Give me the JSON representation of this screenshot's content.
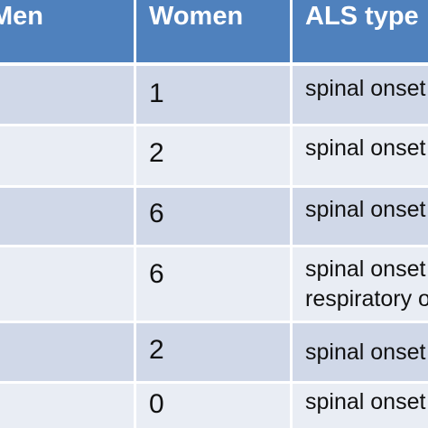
{
  "table": {
    "headers": [
      "Men",
      "Women",
      "ALS type"
    ],
    "rows": [
      {
        "women": "1",
        "als_type": [
          "spinal onset"
        ]
      },
      {
        "women": "2",
        "als_type": [
          "spinal onset"
        ]
      },
      {
        "women": "6",
        "als_type": [
          "spinal onset"
        ]
      },
      {
        "women": "6",
        "als_type": [
          "spinal onset",
          "respiratory o"
        ]
      },
      {
        "women": "2",
        "als_type": [
          "spinal onset"
        ]
      },
      {
        "women": "0",
        "als_type": [
          "spinal onset"
        ]
      }
    ]
  },
  "colors": {
    "header_bg": "#4f81bd",
    "row_odd_bg": "#d0d8e8",
    "row_even_bg": "#e9edf4",
    "grid_line": "#ffffff"
  }
}
